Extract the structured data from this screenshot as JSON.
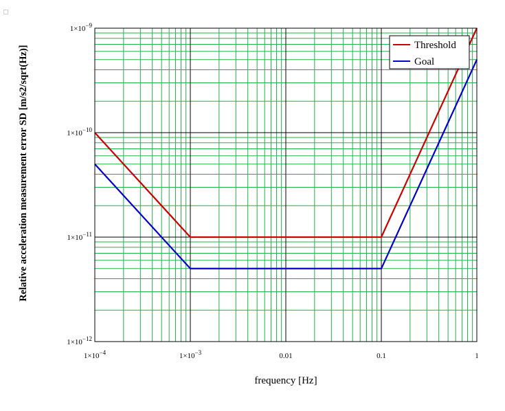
{
  "chart_data": {
    "type": "line",
    "xlabel": "frequency [Hz]",
    "ylabel": "Relative acceleration measurement error SD [m/s2/sqrt(Hz)]",
    "x_scale": "log",
    "y_scale": "log",
    "xlim": [
      0.0001,
      1
    ],
    "ylim": [
      1e-12,
      1e-09
    ],
    "x_ticks": [
      {
        "value": 0.0001,
        "base": "1×10",
        "exp": "−4"
      },
      {
        "value": 0.001,
        "base": "1×10",
        "exp": "−3"
      },
      {
        "value": 0.01,
        "base": "0.01",
        "exp": ""
      },
      {
        "value": 0.1,
        "base": "0.1",
        "exp": ""
      },
      {
        "value": 1,
        "base": "1",
        "exp": ""
      }
    ],
    "y_ticks": [
      {
        "value": 1e-12,
        "base": "1×10",
        "exp": "−12"
      },
      {
        "value": 1e-11,
        "base": "1×10",
        "exp": "−11"
      },
      {
        "value": 1e-10,
        "base": "1×10",
        "exp": "−10"
      },
      {
        "value": 1e-09,
        "base": "1×10",
        "exp": "−9"
      }
    ],
    "grid": true,
    "legend_position": "top-right",
    "series": [
      {
        "name": "Threshold",
        "color": "#cc0000",
        "x": [
          0.0001,
          0.001,
          0.1,
          1
        ],
        "y": [
          1e-10,
          1e-11,
          1e-11,
          1e-09
        ]
      },
      {
        "name": "Goal",
        "color": "#0000cc",
        "x": [
          0.0001,
          0.001,
          0.1,
          1
        ],
        "y": [
          5e-11,
          5e-12,
          5e-12,
          5e-10
        ]
      }
    ]
  }
}
